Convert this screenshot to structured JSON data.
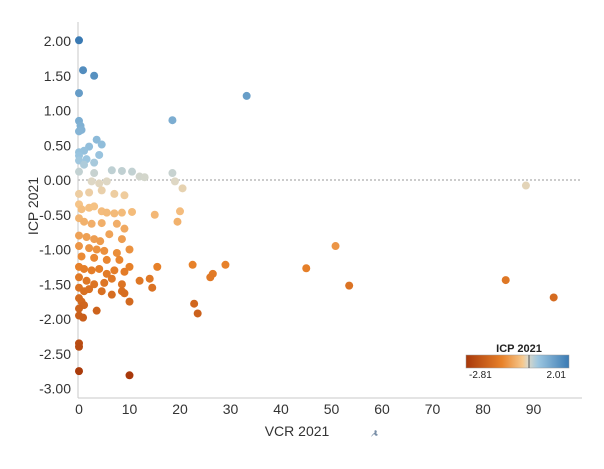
{
  "chart_data": {
    "type": "scatter",
    "xlabel": "VCR 2021",
    "ylabel": "ICP 2021",
    "xlim": [
      0,
      97
    ],
    "ylim": [
      -3.15,
      2.25
    ],
    "x_ticks": [
      "0",
      "10",
      "20",
      "30",
      "40",
      "50",
      "60",
      "70",
      "80",
      "90"
    ],
    "y_ticks": [
      "2.00",
      "1.50",
      "1.00",
      "0.50",
      "0.00",
      "-0.50",
      "-1.00",
      "-1.50",
      "-2.00",
      "-2.50",
      "-3.00"
    ],
    "reference_line": 0,
    "legend": {
      "title": "ICP 2021",
      "min_label": "-2.81",
      "max_label": "2.01",
      "min": -2.81,
      "max": 2.01,
      "placement": "bottom-right"
    },
    "colors": {
      "low": "#a8380a",
      "mid_low": "#e8822a",
      "light_orange": "#f6c88d",
      "neutral": "#dcd8c8",
      "light_blue": "#9cc6e0",
      "high": "#3a7ab3"
    },
    "points": [
      {
        "x": 0,
        "y": 2.01
      },
      {
        "x": 0.8,
        "y": 1.58
      },
      {
        "x": 3,
        "y": 1.5
      },
      {
        "x": 33.2,
        "y": 1.21
      },
      {
        "x": 0,
        "y": 1.25
      },
      {
        "x": 18.5,
        "y": 0.86
      },
      {
        "x": 0,
        "y": 0.85
      },
      {
        "x": 0.3,
        "y": 0.78
      },
      {
        "x": 0.5,
        "y": 0.72
      },
      {
        "x": 0,
        "y": 0.7
      },
      {
        "x": 3.5,
        "y": 0.58
      },
      {
        "x": 4.5,
        "y": 0.51
      },
      {
        "x": 2,
        "y": 0.48
      },
      {
        "x": 1,
        "y": 0.42
      },
      {
        "x": 0,
        "y": 0.4
      },
      {
        "x": 0,
        "y": 0.35
      },
      {
        "x": 4,
        "y": 0.36
      },
      {
        "x": 1.5,
        "y": 0.3
      },
      {
        "x": 0,
        "y": 0.28
      },
      {
        "x": 3,
        "y": 0.25
      },
      {
        "x": 1,
        "y": 0.22
      },
      {
        "x": 0,
        "y": 0.12
      },
      {
        "x": 3,
        "y": 0.1
      },
      {
        "x": 6.5,
        "y": 0.14
      },
      {
        "x": 8.5,
        "y": 0.13
      },
      {
        "x": 10.5,
        "y": 0.12
      },
      {
        "x": 12,
        "y": 0.05
      },
      {
        "x": 13,
        "y": 0.04
      },
      {
        "x": 18.5,
        "y": 0.1
      },
      {
        "x": 19,
        "y": -0.02
      },
      {
        "x": 20.5,
        "y": -0.12
      },
      {
        "x": 88.5,
        "y": -0.08
      },
      {
        "x": 2.5,
        "y": -0.02
      },
      {
        "x": 4,
        "y": -0.05
      },
      {
        "x": 5.5,
        "y": -0.02
      },
      {
        "x": 0,
        "y": -0.2
      },
      {
        "x": 2,
        "y": -0.18
      },
      {
        "x": 4.5,
        "y": -0.15
      },
      {
        "x": 7,
        "y": -0.2
      },
      {
        "x": 9,
        "y": -0.22
      },
      {
        "x": 0,
        "y": -0.35
      },
      {
        "x": 0.5,
        "y": -0.42
      },
      {
        "x": 2,
        "y": -0.4
      },
      {
        "x": 3,
        "y": -0.38
      },
      {
        "x": 4.5,
        "y": -0.45
      },
      {
        "x": 5.5,
        "y": -0.47
      },
      {
        "x": 7,
        "y": -0.48
      },
      {
        "x": 8.5,
        "y": -0.47
      },
      {
        "x": 10.5,
        "y": -0.46
      },
      {
        "x": 15,
        "y": -0.5
      },
      {
        "x": 20,
        "y": -0.45
      },
      {
        "x": 19.5,
        "y": -0.6
      },
      {
        "x": 0,
        "y": -0.55
      },
      {
        "x": 1,
        "y": -0.6
      },
      {
        "x": 2.5,
        "y": -0.63
      },
      {
        "x": 4.5,
        "y": -0.62
      },
      {
        "x": 7.5,
        "y": -0.63
      },
      {
        "x": 9,
        "y": -0.7
      },
      {
        "x": 0,
        "y": -0.8
      },
      {
        "x": 1.5,
        "y": -0.82
      },
      {
        "x": 3,
        "y": -0.85
      },
      {
        "x": 4.2,
        "y": -0.88
      },
      {
        "x": 6,
        "y": -0.78
      },
      {
        "x": 8.5,
        "y": -0.85
      },
      {
        "x": 0,
        "y": -0.95
      },
      {
        "x": 2,
        "y": -0.98
      },
      {
        "x": 3.5,
        "y": -1.0
      },
      {
        "x": 5,
        "y": -1.02
      },
      {
        "x": 7.5,
        "y": -1.05
      },
      {
        "x": 10,
        "y": -1.0
      },
      {
        "x": 50.8,
        "y": -0.95
      },
      {
        "x": 0.5,
        "y": -1.1
      },
      {
        "x": 3,
        "y": -1.12
      },
      {
        "x": 5.5,
        "y": -1.15
      },
      {
        "x": 8,
        "y": -1.15
      },
      {
        "x": 0,
        "y": -1.25
      },
      {
        "x": 1,
        "y": -1.28
      },
      {
        "x": 2.5,
        "y": -1.3
      },
      {
        "x": 4,
        "y": -1.28
      },
      {
        "x": 5.5,
        "y": -1.35
      },
      {
        "x": 7,
        "y": -1.3
      },
      {
        "x": 9,
        "y": -1.32
      },
      {
        "x": 10,
        "y": -1.25
      },
      {
        "x": 15.5,
        "y": -1.25
      },
      {
        "x": 22.5,
        "y": -1.22
      },
      {
        "x": 29,
        "y": -1.22
      },
      {
        "x": 26.5,
        "y": -1.35
      },
      {
        "x": 26,
        "y": -1.4
      },
      {
        "x": 45,
        "y": -1.27
      },
      {
        "x": 0,
        "y": -1.4
      },
      {
        "x": 1.5,
        "y": -1.45
      },
      {
        "x": 3,
        "y": -1.5
      },
      {
        "x": 5,
        "y": -1.48
      },
      {
        "x": 6.5,
        "y": -1.42
      },
      {
        "x": 8.5,
        "y": -1.5
      },
      {
        "x": 12,
        "y": -1.45
      },
      {
        "x": 14,
        "y": -1.42
      },
      {
        "x": 14.5,
        "y": -1.55
      },
      {
        "x": 53.5,
        "y": -1.52
      },
      {
        "x": 84.5,
        "y": -1.44
      },
      {
        "x": 94,
        "y": -1.69
      },
      {
        "x": 0,
        "y": -1.55
      },
      {
        "x": 1,
        "y": -1.6
      },
      {
        "x": 2,
        "y": -1.57
      },
      {
        "x": 4.5,
        "y": -1.6
      },
      {
        "x": 6.5,
        "y": -1.65
      },
      {
        "x": 8.5,
        "y": -1.6
      },
      {
        "x": 9,
        "y": -1.63
      },
      {
        "x": 0,
        "y": -1.7
      },
      {
        "x": 0.5,
        "y": -1.75
      },
      {
        "x": 1,
        "y": -1.8
      },
      {
        "x": 0,
        "y": -1.85
      },
      {
        "x": 3.5,
        "y": -1.88
      },
      {
        "x": 10,
        "y": -1.75
      },
      {
        "x": 22.8,
        "y": -1.78
      },
      {
        "x": 23.5,
        "y": -1.92
      },
      {
        "x": 0,
        "y": -1.95
      },
      {
        "x": 0.8,
        "y": -1.98
      },
      {
        "x": 0,
        "y": -2.35
      },
      {
        "x": 0,
        "y": -2.4
      },
      {
        "x": 0,
        "y": -2.75
      },
      {
        "x": 10,
        "y": -2.81
      }
    ]
  }
}
